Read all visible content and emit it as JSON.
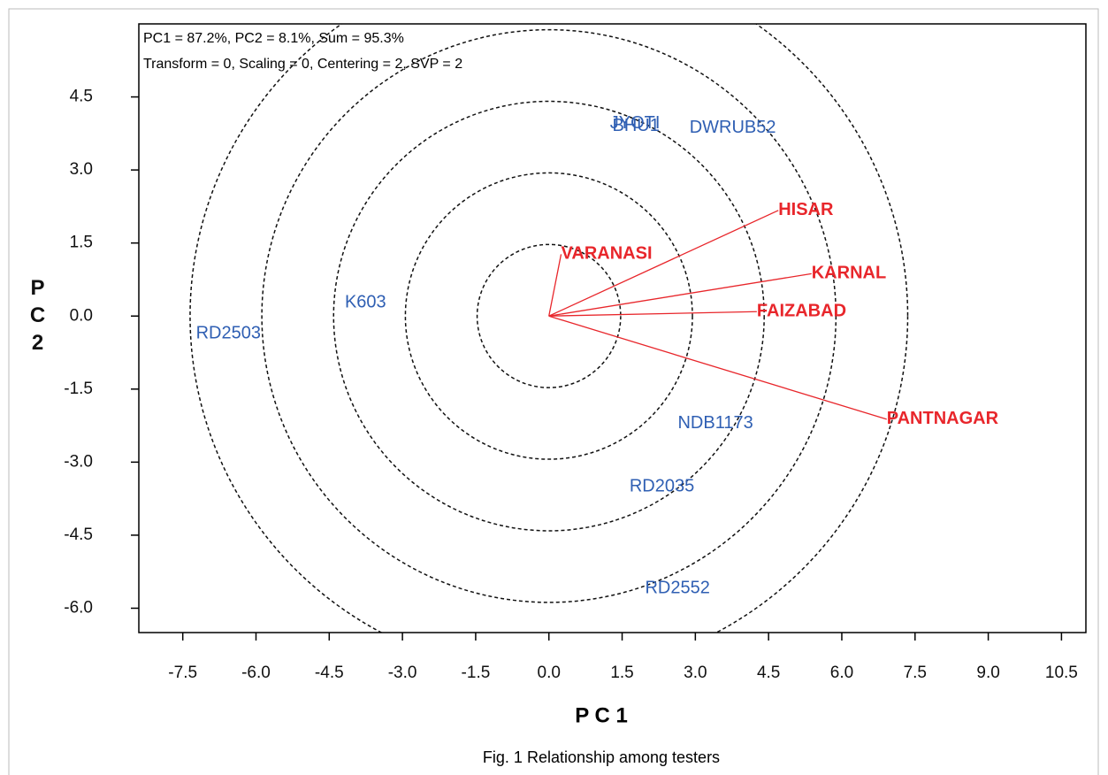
{
  "chart_data": {
    "type": "biplot",
    "title": "PC1 = 87.2%, PC2 = 8.1%, Sum = 95.3%",
    "subtitle": "Transform = 0, Scaling = 0, Centering = 2, SVP = 2",
    "xlabel": "P C 1",
    "ylabel": "PC2",
    "caption": "Fig. 1 Relationship among testers",
    "xlim": [
      -8.4,
      11.0
    ],
    "ylim": [
      -6.5,
      6.0
    ],
    "xticks": [
      -7.5,
      {
        "value": -6.0,
        "label": "-6.0"
      },
      -4.5,
      {
        "value": -3.0,
        "label": "-3.0"
      },
      -1.5,
      {
        "value": 0,
        "label": "0.0"
      },
      1.5,
      {
        "value": 3.0,
        "label": "3.0"
      },
      4.5,
      {
        "value": 6.0,
        "label": "6.0"
      },
      7.5,
      {
        "value": 9.0,
        "label": "9.0"
      },
      10.5
    ],
    "yticks": [
      4.5,
      {
        "value": 3.0,
        "label": "3.0"
      },
      1.5,
      {
        "value": 0,
        "label": "0.0"
      },
      -1.5,
      {
        "value": -3.0,
        "label": "-3.0"
      },
      -4.5,
      {
        "value": -6.0,
        "label": "-6.0"
      }
    ],
    "circles": [
      1.47,
      2.94,
      4.41,
      5.88,
      7.35
    ],
    "genotypes": {
      "color": "#2f5fb3",
      "labels": [
        "JYOTI",
        "BHU1",
        "DWRUB52",
        "K603",
        "RD2503",
        "NDB1173",
        "RD2035",
        "RD2552"
      ],
      "x": [
        1.25,
        1.3,
        2.88,
        -4.18,
        -7.23,
        2.64,
        1.65,
        1.97
      ],
      "y": [
        3.95,
        3.9,
        3.86,
        0.27,
        -0.36,
        -2.21,
        -3.51,
        -5.6
      ]
    },
    "testers": {
      "color": "#e8262b",
      "labels": [
        "VARANASI",
        "HISAR",
        "KARNAL",
        "FAIZABAD",
        "PANTNAGAR"
      ],
      "x": [
        0.25,
        4.7,
        5.38,
        4.26,
        6.92
      ],
      "y": [
        1.27,
        2.17,
        0.87,
        0.09,
        -2.12
      ]
    }
  }
}
